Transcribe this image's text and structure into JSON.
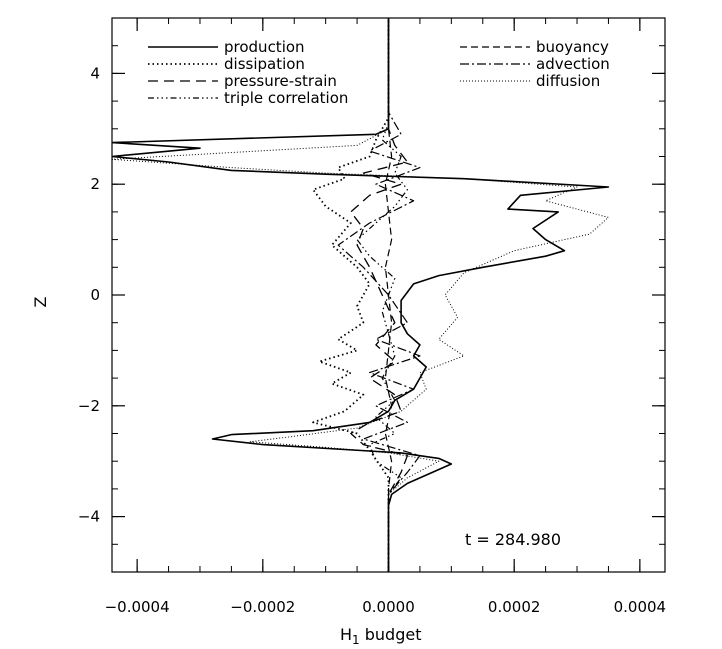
{
  "chart_data": {
    "type": "line",
    "xlabel": "H",
    "xlabel_subscript": "1",
    "xlabel_suffix": " budget",
    "ylabel": "Z",
    "xlim": [
      -0.00044,
      0.00044
    ],
    "ylim": [
      -5,
      5
    ],
    "x_ticks": [
      -0.0004,
      -0.0002,
      0.0,
      0.0002,
      0.0004
    ],
    "x_tick_labels": [
      "−0.0004",
      "−0.0002",
      "0.0000",
      "0.0002",
      "0.0004"
    ],
    "y_ticks": [
      -4,
      -2,
      0,
      2,
      4
    ],
    "y_tick_labels": [
      "−4",
      "−2",
      "0",
      "2",
      "4"
    ],
    "annotation": "t  =  284.980",
    "grid": false,
    "legend_position": "top",
    "series": [
      {
        "name": "production",
        "dash": "",
        "width": 1.6,
        "points": [
          [
            0.0,
            -5
          ],
          [
            0.0,
            -4.2
          ],
          [
            0.0,
            -3.8
          ],
          [
            5e-06,
            -3.6
          ],
          [
            3e-05,
            -3.4
          ],
          [
            0.0001,
            -3.05
          ],
          [
            8e-05,
            -2.95
          ],
          [
            2e-05,
            -2.85
          ],
          [
            -0.0002,
            -2.7
          ],
          [
            -0.00028,
            -2.6
          ],
          [
            -0.00025,
            -2.52
          ],
          [
            -0.00012,
            -2.45
          ],
          [
            -3e-05,
            -2.3
          ],
          [
            0.0,
            -2.1
          ],
          [
            1e-05,
            -1.9
          ],
          [
            4e-05,
            -1.7
          ],
          [
            5e-05,
            -1.5
          ],
          [
            6e-05,
            -1.3
          ],
          [
            4e-05,
            -1.1
          ],
          [
            5e-05,
            -0.9
          ],
          [
            3e-05,
            -0.7
          ],
          [
            2e-05,
            -0.5
          ],
          [
            2e-05,
            -0.3
          ],
          [
            2e-05,
            -0.1
          ],
          [
            4e-05,
            0.2
          ],
          [
            8e-05,
            0.35
          ],
          [
            0.00015,
            0.5
          ],
          [
            0.00025,
            0.7
          ],
          [
            0.00028,
            0.8
          ],
          [
            0.00025,
            1.0
          ],
          [
            0.00023,
            1.2
          ],
          [
            0.00027,
            1.5
          ],
          [
            0.00019,
            1.55
          ],
          [
            0.00021,
            1.8
          ],
          [
            0.00035,
            1.95
          ],
          [
            0.00012,
            2.1
          ],
          [
            -0.0001,
            2.18
          ],
          [
            -0.00025,
            2.25
          ],
          [
            -0.00035,
            2.4
          ],
          [
            -0.00044,
            2.5
          ],
          [
            -0.0003,
            2.65
          ],
          [
            -0.00044,
            2.75
          ],
          [
            -2e-05,
            2.9
          ],
          [
            0.0,
            3.0
          ],
          [
            0.0,
            3.4
          ],
          [
            0.0,
            4.2
          ],
          [
            0.0,
            5
          ]
        ]
      },
      {
        "name": "dissipation",
        "dash": "1.5,3",
        "width": 1.8,
        "points": [
          [
            0.0,
            -5
          ],
          [
            0.0,
            -3.8
          ],
          [
            0.0,
            -3.3
          ],
          [
            -3e-05,
            -2.8
          ],
          [
            -5e-05,
            -2.5
          ],
          [
            -0.00012,
            -2.3
          ],
          [
            -7e-05,
            -2.1
          ],
          [
            -4e-05,
            -1.8
          ],
          [
            -9e-05,
            -1.6
          ],
          [
            -6e-05,
            -1.4
          ],
          [
            -0.00011,
            -1.2
          ],
          [
            -5e-05,
            -1.0
          ],
          [
            -8e-05,
            -0.8
          ],
          [
            -4e-05,
            -0.5
          ],
          [
            -5e-05,
            -0.2
          ],
          [
            -3e-05,
            0.2
          ],
          [
            -5e-05,
            0.5
          ],
          [
            -9e-05,
            0.9
          ],
          [
            -6e-05,
            1.3
          ],
          [
            -0.0001,
            1.6
          ],
          [
            -0.00012,
            1.9
          ],
          [
            -7e-05,
            2.1
          ],
          [
            -8e-05,
            2.3
          ],
          [
            -3e-05,
            2.5
          ],
          [
            -2e-05,
            2.8
          ],
          [
            0.0,
            3.2
          ],
          [
            0.0,
            5
          ]
        ]
      },
      {
        "name": "pressure-strain",
        "dash": "10,6",
        "width": 1.3,
        "points": [
          [
            0.0,
            -5
          ],
          [
            0.0,
            -3.6
          ],
          [
            2e-05,
            -3.2
          ],
          [
            3e-05,
            -2.9
          ],
          [
            -4e-05,
            -2.7
          ],
          [
            -6e-05,
            -2.5
          ],
          [
            -3e-05,
            -2.3
          ],
          [
            2e-05,
            -2.1
          ],
          [
            1e-05,
            -1.8
          ],
          [
            -3e-05,
            -1.5
          ],
          [
            1e-05,
            -1.2
          ],
          [
            -2e-05,
            -0.9
          ],
          [
            1e-05,
            -0.5
          ],
          [
            -1e-05,
            0.0
          ],
          [
            -3e-05,
            0.5
          ],
          [
            -5e-05,
            0.9
          ],
          [
            -4e-05,
            1.2
          ],
          [
            -6e-05,
            1.5
          ],
          [
            -3e-05,
            1.8
          ],
          [
            2e-05,
            2.0
          ],
          [
            -4e-05,
            2.2
          ],
          [
            3e-05,
            2.4
          ],
          [
            1e-05,
            2.7
          ],
          [
            0.0,
            3.0
          ],
          [
            0.0,
            5
          ]
        ]
      },
      {
        "name": "triple correlation",
        "dash": "6,3,1.5,3,1.5,3,1.5,3",
        "width": 1.2,
        "points": [
          [
            0.0,
            -5
          ],
          [
            0.0,
            -3.6
          ],
          [
            2e-05,
            -3.3
          ],
          [
            -2e-05,
            -3.0
          ],
          [
            -3e-05,
            -2.7
          ],
          [
            1e-05,
            -2.5
          ],
          [
            -2e-05,
            -2.2
          ],
          [
            1e-05,
            -1.9
          ],
          [
            -1e-05,
            -1.5
          ],
          [
            1e-05,
            -1.1
          ],
          [
            0.0,
            -0.7
          ],
          [
            -1e-05,
            -0.3
          ],
          [
            1e-05,
            0.3
          ],
          [
            -3e-05,
            0.7
          ],
          [
            -5e-05,
            1.0
          ],
          [
            -2e-05,
            1.3
          ],
          [
            1e-05,
            1.6
          ],
          [
            3e-05,
            1.9
          ],
          [
            1e-05,
            2.2
          ],
          [
            2e-05,
            2.5
          ],
          [
            -1e-05,
            2.8
          ],
          [
            0.0,
            3.1
          ],
          [
            0.0,
            5
          ]
        ]
      },
      {
        "name": "buoyancy",
        "dash": "7,4",
        "width": 1.2,
        "points": [
          [
            0.0,
            -5
          ],
          [
            0.0,
            -3.5
          ],
          [
            5e-06,
            -3.0
          ],
          [
            -5e-06,
            -2.5
          ],
          [
            5e-06,
            -2.0
          ],
          [
            -5e-06,
            -1.5
          ],
          [
            0.0,
            -1.0
          ],
          [
            5e-06,
            -0.5
          ],
          [
            0.0,
            0.0
          ],
          [
            -5e-06,
            0.5
          ],
          [
            5e-06,
            1.0
          ],
          [
            0.0,
            1.5
          ],
          [
            -5e-06,
            2.0
          ],
          [
            5e-06,
            2.5
          ],
          [
            0.0,
            3.0
          ],
          [
            0.0,
            5
          ]
        ]
      },
      {
        "name": "advection",
        "dash": "9,3,2,3",
        "width": 1.2,
        "points": [
          [
            0.0,
            -5
          ],
          [
            0.0,
            -3.6
          ],
          [
            3e-05,
            -3.2
          ],
          [
            5e-05,
            -2.9
          ],
          [
            -4e-05,
            -2.6
          ],
          [
            3e-05,
            -2.3
          ],
          [
            -2e-05,
            -2.0
          ],
          [
            4e-05,
            -1.7
          ],
          [
            -3e-05,
            -1.4
          ],
          [
            5e-05,
            -1.1
          ],
          [
            -2e-05,
            -0.8
          ],
          [
            3e-05,
            -0.5
          ],
          [
            0.0,
            0.0
          ],
          [
            -4e-05,
            0.5
          ],
          [
            -8e-05,
            0.9
          ],
          [
            -3e-05,
            1.3
          ],
          [
            4e-05,
            1.7
          ],
          [
            -2e-05,
            2.0
          ],
          [
            5e-05,
            2.3
          ],
          [
            -3e-05,
            2.6
          ],
          [
            2e-05,
            2.9
          ],
          [
            0.0,
            3.3
          ],
          [
            0.0,
            5
          ]
        ]
      },
      {
        "name": "diffusion",
        "dash": "1,2",
        "width": 1.0,
        "points": [
          [
            0.0,
            -5
          ],
          [
            0.0,
            -3.6
          ],
          [
            3e-05,
            -3.3
          ],
          [
            8e-05,
            -3.0
          ],
          [
            0.0,
            -2.85
          ],
          [
            -0.0001,
            -2.75
          ],
          [
            -0.00022,
            -2.65
          ],
          [
            -0.00015,
            -2.55
          ],
          [
            -5e-05,
            -2.4
          ],
          [
            2e-05,
            -2.1
          ],
          [
            6e-05,
            -1.7
          ],
          [
            5e-05,
            -1.4
          ],
          [
            0.00012,
            -1.1
          ],
          [
            8e-05,
            -0.8
          ],
          [
            0.00011,
            -0.4
          ],
          [
            9e-05,
            0.0
          ],
          [
            0.00012,
            0.4
          ],
          [
            0.0002,
            0.8
          ],
          [
            0.00032,
            1.1
          ],
          [
            0.00035,
            1.4
          ],
          [
            0.00025,
            1.7
          ],
          [
            0.0003,
            1.95
          ],
          [
            0.00012,
            2.1
          ],
          [
            -0.0001,
            2.2
          ],
          [
            -0.00025,
            2.3
          ],
          [
            -0.00044,
            2.45
          ],
          [
            -5e-05,
            2.7
          ],
          [
            0.0,
            3.0
          ],
          [
            0.0,
            5
          ]
        ]
      }
    ]
  }
}
